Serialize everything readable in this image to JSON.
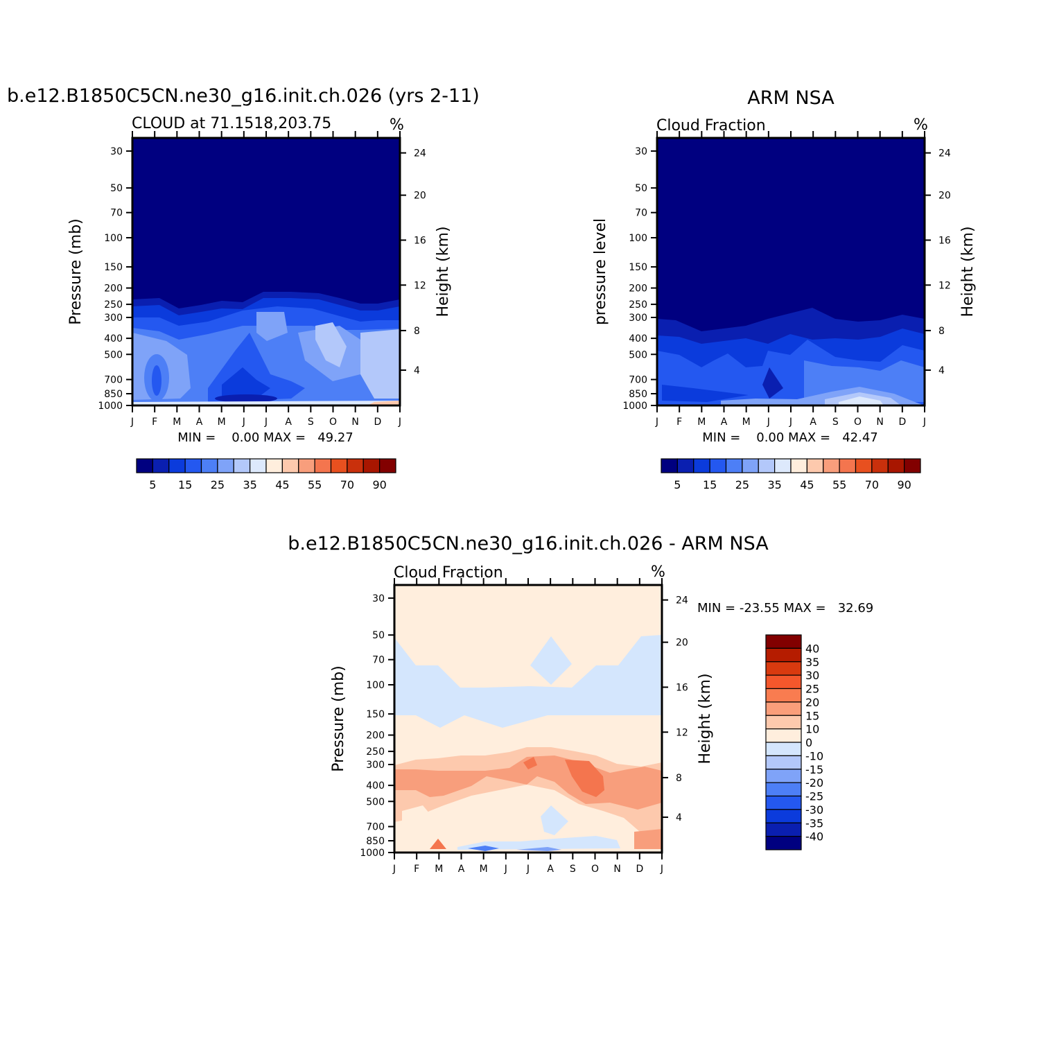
{
  "months": [
    "J",
    "F",
    "M",
    "A",
    "M",
    "J",
    "J",
    "A",
    "S",
    "O",
    "N",
    "D",
    "J"
  ],
  "pressure_ticks": [
    "30",
    "50",
    "70",
    "100",
    "150",
    "200",
    "250",
    "300",
    "400",
    "500",
    "700",
    "850",
    "1000"
  ],
  "height_ticks": [
    "24",
    "20",
    "16",
    "12",
    "8",
    "4"
  ],
  "panels": [
    {
      "id": "model",
      "main_title": "b.e12.B1850C5CN.ne30_g16.init.ch.026 (yrs 2-11)",
      "subtitle": "CLOUD at 71.1518,203.75",
      "units": "%",
      "left_label": "Pressure (mb)",
      "right_label": "Height (km)",
      "stats": "MIN =    0.00 MAX =   49.27"
    },
    {
      "id": "obs",
      "main_title": "ARM NSA",
      "subtitle": "Cloud Fraction",
      "units": "%",
      "left_label": "pressure level",
      "right_label": "Height (km)",
      "stats": "MIN =    0.00 MAX =   42.47"
    },
    {
      "id": "diff",
      "main_title": "b.e12.B1850C5CN.ne30_g16.init.ch.026 - ARM NSA",
      "subtitle": "Cloud Fraction",
      "units": "%",
      "left_label": "Pressure (mb)",
      "right_label": "Height (km)",
      "stats": "MIN = -23.55 MAX =   32.69"
    }
  ],
  "colorbar_abs": {
    "labels": [
      "5",
      "15",
      "25",
      "35",
      "45",
      "55",
      "70",
      "90"
    ],
    "colors": [
      "#000080",
      "#0a1fb0",
      "#0b3bdc",
      "#2458f0",
      "#4d7ff6",
      "#7fa3f8",
      "#b3c8fa",
      "#dde9fc",
      "#ffeedd",
      "#fdc9ad",
      "#f89e7c",
      "#f4754e",
      "#e8501f",
      "#c9300c",
      "#a81600",
      "#820000"
    ]
  },
  "colorbar_diff": {
    "labels": [
      "40",
      "35",
      "30",
      "25",
      "20",
      "15",
      "10",
      "0",
      "-10",
      "-15",
      "-20",
      "-25",
      "-30",
      "-35",
      "-40"
    ],
    "colors": [
      "#820000",
      "#b51c00",
      "#d93a0f",
      "#f4572c",
      "#f97c50",
      "#fa9e7a",
      "#fdc9ad",
      "#ffeedd",
      "#d4e6fd",
      "#b3c8fa",
      "#7fa3f8",
      "#4d7ff6",
      "#2458f0",
      "#0b3bdc",
      "#0a1fb0",
      "#000080"
    ]
  },
  "chart_data": [
    {
      "type": "heatmap",
      "title": "b.e12.B1850C5CN.ne30_g16.init.ch.026 (yrs 2-11)",
      "subtitle": "CLOUD at 71.1518,203.75",
      "x": [
        "J",
        "F",
        "M",
        "A",
        "M",
        "J",
        "J",
        "A",
        "S",
        "O",
        "N",
        "D",
        "J"
      ],
      "y_pressure_mb": [
        1000,
        850,
        700,
        500,
        400,
        300,
        250,
        200,
        150,
        100,
        70,
        50,
        30
      ],
      "values_percent": [
        [
          40,
          30,
          37,
          38,
          38,
          20,
          22,
          30,
          35,
          37,
          37,
          42,
          45
        ],
        [
          38,
          31,
          36,
          32,
          28,
          17,
          18,
          25,
          30,
          35,
          36,
          40,
          42
        ],
        [
          36,
          33,
          36,
          30,
          22,
          15,
          20,
          22,
          30,
          32,
          34,
          38,
          36
        ],
        [
          34,
          36,
          36,
          32,
          26,
          22,
          28,
          32,
          36,
          38,
          35,
          36,
          34
        ],
        [
          32,
          32,
          33,
          30,
          28,
          30,
          34,
          33,
          36,
          34,
          32,
          33,
          32
        ],
        [
          22,
          23,
          24,
          22,
          22,
          24,
          30,
          32,
          26,
          24,
          23,
          22,
          22
        ],
        [
          10,
          9,
          6,
          8,
          10,
          12,
          14,
          14,
          13,
          11,
          8,
          8,
          10
        ],
        [
          3,
          3,
          2,
          2,
          2,
          3,
          4,
          4,
          4,
          3,
          2,
          2,
          3
        ],
        [
          0,
          0,
          0,
          0,
          0,
          0,
          0,
          0,
          0,
          0,
          0,
          0,
          0
        ],
        [
          0,
          0,
          0,
          0,
          0,
          0,
          0,
          0,
          0,
          0,
          0,
          0,
          0
        ],
        [
          0,
          0,
          0,
          0,
          0,
          0,
          0,
          0,
          0,
          0,
          0,
          0,
          0
        ],
        [
          0,
          0,
          0,
          0,
          0,
          0,
          0,
          0,
          0,
          0,
          0,
          0,
          0
        ],
        [
          0,
          0,
          0,
          0,
          0,
          0,
          0,
          0,
          0,
          0,
          0,
          0,
          0
        ]
      ],
      "min": 0.0,
      "max": 49.27,
      "units": "%",
      "xlabel": "",
      "ylabel": "Pressure (mb)",
      "ylabel_right": "Height (km)"
    },
    {
      "type": "heatmap",
      "title": "ARM NSA",
      "subtitle": "Cloud Fraction",
      "x": [
        "J",
        "F",
        "M",
        "A",
        "M",
        "J",
        "J",
        "A",
        "S",
        "O",
        "N",
        "D",
        "J"
      ],
      "y_pressure_mb": [
        1000,
        850,
        700,
        500,
        400,
        300,
        250,
        200,
        150,
        100,
        70,
        50,
        30
      ],
      "values_percent": [
        [
          12,
          10,
          20,
          22,
          28,
          14,
          30,
          34,
          38,
          42,
          40,
          28,
          14
        ],
        [
          14,
          12,
          20,
          22,
          26,
          16,
          24,
          28,
          30,
          36,
          32,
          26,
          14
        ],
        [
          18,
          16,
          20,
          24,
          22,
          16,
          20,
          24,
          26,
          28,
          26,
          22,
          18
        ],
        [
          20,
          18,
          16,
          22,
          20,
          18,
          16,
          20,
          22,
          20,
          18,
          20,
          20
        ],
        [
          16,
          15,
          14,
          16,
          15,
          14,
          13,
          14,
          14,
          14,
          14,
          15,
          16
        ],
        [
          8,
          6,
          5,
          6,
          6,
          8,
          9,
          10,
          7,
          6,
          6,
          8,
          8
        ],
        [
          2,
          2,
          2,
          2,
          2,
          3,
          3,
          3,
          3,
          2,
          2,
          2,
          2
        ],
        [
          0,
          0,
          0,
          0,
          0,
          0,
          0,
          0,
          0,
          0,
          0,
          0,
          0
        ],
        [
          0,
          0,
          0,
          0,
          0,
          0,
          0,
          0,
          0,
          0,
          0,
          0,
          0
        ],
        [
          0,
          0,
          0,
          0,
          0,
          0,
          0,
          0,
          0,
          0,
          0,
          0,
          0
        ],
        [
          0,
          0,
          0,
          0,
          0,
          0,
          0,
          0,
          0,
          0,
          0,
          0,
          0
        ],
        [
          0,
          0,
          0,
          0,
          0,
          0,
          0,
          0,
          0,
          0,
          0,
          0,
          0
        ],
        [
          0,
          0,
          0,
          0,
          0,
          0,
          0,
          0,
          0,
          0,
          0,
          0,
          0
        ]
      ],
      "min": 0.0,
      "max": 42.47,
      "units": "%",
      "xlabel": "",
      "ylabel": "pressure level",
      "ylabel_right": "Height (km)"
    },
    {
      "type": "heatmap",
      "title": "b.e12.B1850C5CN.ne30_g16.init.ch.026 - ARM NSA",
      "subtitle": "Cloud Fraction",
      "x": [
        "J",
        "F",
        "M",
        "A",
        "M",
        "J",
        "J",
        "A",
        "S",
        "O",
        "N",
        "D",
        "J"
      ],
      "y_pressure_mb": [
        1000,
        850,
        700,
        500,
        400,
        300,
        250,
        200,
        150,
        100,
        70,
        50,
        30
      ],
      "values_percent": [
        [
          18,
          12,
          22,
          -8,
          -20,
          -6,
          -8,
          -6,
          -4,
          -4,
          -2,
          12,
          16
        ],
        [
          14,
          8,
          14,
          -4,
          -6,
          2,
          2,
          -4,
          4,
          2,
          6,
          14,
          18
        ],
        [
          10,
          12,
          12,
          4,
          4,
          3,
          3,
          -4,
          4,
          4,
          8,
          12,
          10
        ],
        [
          8,
          10,
          12,
          8,
          6,
          4,
          4,
          -4,
          12,
          14,
          10,
          10,
          8
        ],
        [
          16,
          17,
          19,
          14,
          12,
          12,
          12,
          14,
          20,
          22,
          16,
          18,
          16
        ],
        [
          14,
          15,
          16,
          12,
          12,
          14,
          24,
          18,
          24,
          20,
          14,
          16,
          14
        ],
        [
          6,
          7,
          8,
          7,
          6,
          6,
          12,
          12,
          14,
          12,
          6,
          6,
          6
        ],
        [
          2,
          2,
          2,
          2,
          2,
          3,
          4,
          4,
          3,
          3,
          2,
          2,
          2
        ],
        [
          2,
          2,
          -4,
          2,
          2,
          2,
          -2,
          2,
          2,
          2,
          2,
          2,
          2
        ],
        [
          -4,
          -4,
          -4,
          -4,
          -4,
          -4,
          -4,
          -4,
          -4,
          -4,
          -4,
          -4,
          -4
        ],
        [
          -4,
          -2,
          -2,
          2,
          2,
          2,
          2,
          -4,
          2,
          2,
          -2,
          -4,
          -4
        ],
        [
          2,
          2,
          2,
          2,
          2,
          2,
          2,
          2,
          2,
          2,
          2,
          2,
          2
        ],
        [
          2,
          2,
          2,
          2,
          2,
          2,
          2,
          2,
          2,
          2,
          2,
          2,
          2
        ]
      ],
      "min": -23.55,
      "max": 32.69,
      "units": "%",
      "xlabel": "",
      "ylabel": "Pressure (mb)",
      "ylabel_right": "Height (km)"
    }
  ]
}
